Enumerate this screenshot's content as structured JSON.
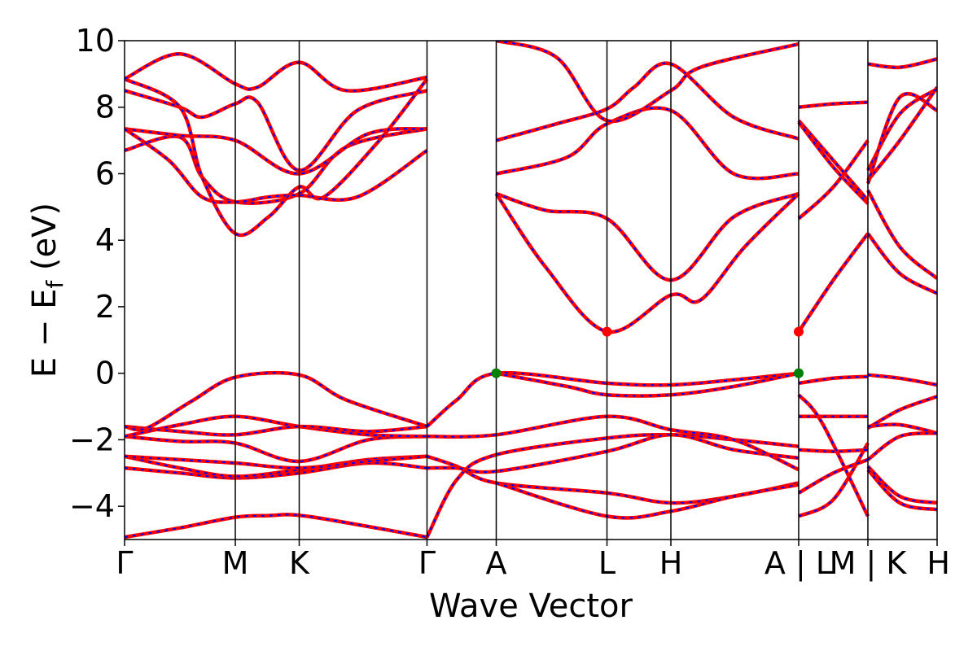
{
  "chart_data": {
    "type": "line",
    "title": "",
    "xlabel": "Wave Vector",
    "ylabel": {
      "main": "E − E",
      "sub": "f",
      "unit": "(eV)"
    },
    "ylim": [
      -5,
      10
    ],
    "yticks": [
      "−4",
      "−2",
      "0",
      "2",
      "4",
      "6",
      "8",
      "10"
    ],
    "ytick_values": [
      -4,
      -2,
      0,
      2,
      4,
      6,
      8,
      10
    ],
    "grid": false,
    "legend": "none",
    "kpoints": [
      {
        "label": "Γ",
        "x": 0
      },
      {
        "label": "M",
        "x": 1.0
      },
      {
        "label": "K",
        "x": 1.577
      },
      {
        "label": "Γ",
        "x": 2.731
      },
      {
        "label": "A",
        "x": 3.356
      },
      {
        "label": "L",
        "x": 4.356
      },
      {
        "label": "H",
        "x": 4.933
      },
      {
        "label": "A | L",
        "x": 6.087
      },
      {
        "label": "M | K",
        "x": 6.712
      },
      {
        "label": "H",
        "x": 7.337
      }
    ],
    "xrange": [
      0,
      7.337
    ],
    "colors": {
      "band_solid": "#ff0000",
      "band_dashed": "#0000ff",
      "vbm": "#008000",
      "cbm": "#ff0000"
    },
    "markers": [
      {
        "name": "VBM",
        "x": 3.356,
        "y": 0.0
      },
      {
        "name": "VBM",
        "x": 6.087,
        "y": 0.0
      },
      {
        "name": "CBM",
        "x": 4.356,
        "y": 1.25
      },
      {
        "name": "CBM",
        "x": 6.087,
        "y": 1.25
      }
    ],
    "series": [
      {
        "points": [
          [
            0,
            -4.93
          ],
          [
            0.5,
            -4.65
          ],
          [
            1.0,
            -4.33
          ],
          [
            1.3,
            -4.28
          ],
          [
            1.577,
            -4.27
          ],
          [
            2.1,
            -4.55
          ],
          [
            2.731,
            -4.93
          ]
        ]
      },
      {
        "points": [
          [
            0,
            -2.85
          ],
          [
            0.5,
            -3.0
          ],
          [
            1.0,
            -3.15
          ],
          [
            1.577,
            -3.0
          ],
          [
            2.2,
            -2.7
          ],
          [
            2.731,
            -2.85
          ]
        ]
      },
      {
        "points": [
          [
            0,
            -2.5
          ],
          [
            0.5,
            -2.85
          ],
          [
            1.0,
            -3.1
          ],
          [
            1.577,
            -2.9
          ],
          [
            2.2,
            -2.6
          ],
          [
            2.731,
            -2.5
          ]
        ]
      },
      {
        "points": [
          [
            0,
            -2.5
          ],
          [
            0.5,
            -2.6
          ],
          [
            1.0,
            -2.7
          ],
          [
            1.577,
            -2.85
          ],
          [
            2.2,
            -2.65
          ],
          [
            2.731,
            -2.5
          ]
        ]
      },
      {
        "points": [
          [
            0,
            -1.9
          ],
          [
            0.5,
            -2.05
          ],
          [
            1.0,
            -2.1
          ],
          [
            1.577,
            -2.65
          ],
          [
            2.2,
            -2.0
          ],
          [
            2.731,
            -1.9
          ]
        ]
      },
      {
        "points": [
          [
            0,
            -1.9
          ],
          [
            0.5,
            -1.55
          ],
          [
            1.0,
            -1.3
          ],
          [
            1.577,
            -1.6
          ],
          [
            2.2,
            -1.85
          ],
          [
            2.731,
            -1.9
          ]
        ]
      },
      {
        "points": [
          [
            0,
            -1.6
          ],
          [
            0.5,
            -1.75
          ],
          [
            1.0,
            -1.85
          ],
          [
            1.577,
            -1.6
          ],
          [
            2.2,
            -1.75
          ],
          [
            2.731,
            -1.6
          ]
        ]
      },
      {
        "points": [
          [
            0,
            -1.6
          ],
          [
            0.2,
            -1.65
          ],
          [
            0.6,
            -0.85
          ],
          [
            1.0,
            -0.12
          ],
          [
            1.577,
            -0.05
          ],
          [
            2.0,
            -0.8
          ],
          [
            2.731,
            -1.6
          ]
        ]
      },
      {
        "points": [
          [
            0,
            6.7
          ],
          [
            0.5,
            7.1
          ],
          [
            0.7,
            5.9
          ],
          [
            1.0,
            5.15
          ],
          [
            1.577,
            5.4
          ],
          [
            2.0,
            6.8
          ],
          [
            2.731,
            7.35
          ]
        ]
      },
      {
        "points": [
          [
            0,
            7.35
          ],
          [
            0.5,
            7.15
          ],
          [
            1.0,
            7.0
          ],
          [
            1.577,
            6.0
          ],
          [
            2.2,
            7.2
          ],
          [
            2.731,
            7.35
          ]
        ]
      },
      {
        "points": [
          [
            0,
            7.35
          ],
          [
            0.4,
            6.4
          ],
          [
            0.7,
            5.3
          ],
          [
            1.0,
            5.15
          ],
          [
            1.3,
            5.3
          ],
          [
            1.577,
            5.35
          ],
          [
            2.1,
            5.3
          ],
          [
            2.731,
            6.7
          ]
        ]
      },
      {
        "points": [
          [
            0,
            8.5
          ],
          [
            0.5,
            8.0
          ],
          [
            0.7,
            7.7
          ],
          [
            1.0,
            8.1
          ],
          [
            1.2,
            8.15
          ],
          [
            1.577,
            6.1
          ],
          [
            2.1,
            7.9
          ],
          [
            2.731,
            8.5
          ]
        ]
      },
      {
        "points": [
          [
            0,
            8.85
          ],
          [
            0.5,
            8.0
          ],
          [
            0.7,
            5.9
          ],
          [
            1.0,
            4.2
          ],
          [
            1.3,
            4.7
          ],
          [
            1.577,
            5.6
          ],
          [
            1.8,
            5.3
          ],
          [
            2.3,
            7.0
          ],
          [
            2.731,
            8.85
          ]
        ]
      },
      {
        "points": [
          [
            0,
            8.85
          ],
          [
            0.5,
            9.6
          ],
          [
            1.0,
            8.7
          ],
          [
            1.2,
            8.6
          ],
          [
            1.577,
            9.35
          ],
          [
            2.0,
            8.5
          ],
          [
            2.731,
            8.9
          ]
        ]
      },
      {
        "points": [
          [
            2.731,
            -4.93
          ],
          [
            3.0,
            -3.2
          ],
          [
            3.356,
            -2.45
          ],
          [
            4.356,
            -1.95
          ],
          [
            4.933,
            -1.85
          ],
          [
            5.5,
            -2.0
          ],
          [
            6.087,
            -2.2
          ]
        ]
      },
      {
        "points": [
          [
            2.731,
            -2.5
          ],
          [
            3.0,
            -2.8
          ],
          [
            3.356,
            -3.3
          ],
          [
            4.356,
            -3.6
          ],
          [
            4.933,
            -3.9
          ],
          [
            5.5,
            -3.7
          ],
          [
            6.087,
            -3.3
          ]
        ]
      },
      {
        "points": [
          [
            2.731,
            -2.85
          ],
          [
            3.0,
            -2.85
          ],
          [
            3.356,
            -2.95
          ],
          [
            4.356,
            -2.35
          ],
          [
            4.933,
            -1.85
          ],
          [
            5.5,
            -2.3
          ],
          [
            6.087,
            -2.55
          ]
        ]
      },
      {
        "points": [
          [
            2.731,
            -1.9
          ],
          [
            3.356,
            -1.85
          ],
          [
            4.356,
            -1.3
          ],
          [
            4.933,
            -1.7
          ],
          [
            5.5,
            -2.0
          ],
          [
            6.087,
            -2.9
          ]
        ]
      },
      {
        "points": [
          [
            2.731,
            -1.6
          ],
          [
            3.0,
            -0.8
          ],
          [
            3.356,
            0.0
          ],
          [
            4.356,
            -0.3
          ],
          [
            4.933,
            -0.35
          ],
          [
            5.5,
            -0.2
          ],
          [
            6.087,
            0.0
          ]
        ]
      },
      {
        "points": [
          [
            3.356,
            0.0
          ],
          [
            4.0,
            -0.4
          ],
          [
            4.356,
            -0.65
          ],
          [
            4.933,
            -0.65
          ],
          [
            5.5,
            -0.4
          ],
          [
            6.087,
            0.0
          ]
        ]
      },
      {
        "points": [
          [
            3.356,
            -3.3
          ],
          [
            4.356,
            -4.3
          ],
          [
            4.933,
            -4.15
          ],
          [
            5.5,
            -3.7
          ],
          [
            6.087,
            -3.35
          ]
        ]
      },
      {
        "points": [
          [
            3.356,
            5.4
          ],
          [
            3.8,
            4.9
          ],
          [
            4.356,
            4.65
          ],
          [
            4.933,
            2.8
          ],
          [
            5.5,
            4.7
          ],
          [
            6.087,
            5.4
          ]
        ]
      },
      {
        "points": [
          [
            3.356,
            5.4
          ],
          [
            3.8,
            3.2
          ],
          [
            4.356,
            1.25
          ],
          [
            4.933,
            2.35
          ],
          [
            5.2,
            2.2
          ],
          [
            5.6,
            3.8
          ],
          [
            6.087,
            5.4
          ]
        ]
      },
      {
        "points": [
          [
            3.356,
            6.0
          ],
          [
            4.0,
            6.5
          ],
          [
            4.356,
            7.5
          ],
          [
            4.933,
            7.9
          ],
          [
            5.5,
            6.0
          ],
          [
            6.087,
            6.0
          ]
        ]
      },
      {
        "points": [
          [
            3.356,
            7.0
          ],
          [
            3.9,
            7.5
          ],
          [
            4.356,
            7.95
          ],
          [
            4.6,
            8.6
          ],
          [
            4.933,
            9.3
          ],
          [
            5.5,
            7.7
          ],
          [
            6.087,
            7.05
          ]
        ]
      },
      {
        "points": [
          [
            3.356,
            10.0
          ],
          [
            3.9,
            9.5
          ],
          [
            4.356,
            7.6
          ],
          [
            4.933,
            8.5
          ],
          [
            5.2,
            9.2
          ],
          [
            6.087,
            9.9
          ]
        ]
      },
      {
        "points": [
          [
            6.087,
            -4.3
          ],
          [
            6.4,
            -3.8
          ],
          [
            6.712,
            -2.1
          ]
        ]
      },
      {
        "points": [
          [
            6.087,
            -3.6
          ],
          [
            6.4,
            -3.0
          ],
          [
            6.712,
            -2.6
          ]
        ]
      },
      {
        "points": [
          [
            6.087,
            -2.3
          ],
          [
            6.4,
            -2.35
          ],
          [
            6.712,
            -2.3
          ]
        ]
      },
      {
        "points": [
          [
            6.087,
            -1.3
          ],
          [
            6.712,
            -1.3
          ]
        ]
      },
      {
        "points": [
          [
            6.087,
            -0.65
          ],
          [
            6.3,
            -1.5
          ],
          [
            6.712,
            -4.3
          ]
        ]
      },
      {
        "points": [
          [
            6.087,
            -0.3
          ],
          [
            6.4,
            -0.15
          ],
          [
            6.712,
            -0.1
          ]
        ]
      },
      {
        "points": [
          [
            6.087,
            1.25
          ],
          [
            6.4,
            2.8
          ],
          [
            6.712,
            4.2
          ]
        ]
      },
      {
        "points": [
          [
            6.087,
            4.65
          ],
          [
            6.4,
            5.6
          ],
          [
            6.712,
            7.0
          ]
        ]
      },
      {
        "points": [
          [
            6.087,
            7.6
          ],
          [
            6.4,
            6.4
          ],
          [
            6.712,
            5.2
          ]
        ]
      },
      {
        "points": [
          [
            6.087,
            7.55
          ],
          [
            6.4,
            6.2
          ],
          [
            6.712,
            5.1
          ]
        ]
      },
      {
        "points": [
          [
            6.087,
            8.0
          ],
          [
            6.4,
            8.1
          ],
          [
            6.712,
            8.15
          ]
        ]
      },
      {
        "points": [
          [
            6.712,
            -0.05
          ],
          [
            7.0,
            -0.15
          ],
          [
            7.337,
            -0.35
          ]
        ]
      },
      {
        "points": [
          [
            6.712,
            -1.65
          ],
          [
            7.0,
            -1.1
          ],
          [
            7.337,
            -0.7
          ]
        ]
      },
      {
        "points": [
          [
            6.712,
            -1.6
          ],
          [
            7.0,
            -1.55
          ],
          [
            7.337,
            -1.8
          ]
        ]
      },
      {
        "points": [
          [
            6.712,
            -2.6
          ],
          [
            7.0,
            -1.9
          ],
          [
            7.337,
            -1.8
          ]
        ]
      },
      {
        "points": [
          [
            6.712,
            -2.8
          ],
          [
            7.0,
            -3.7
          ],
          [
            7.337,
            -3.9
          ]
        ]
      },
      {
        "points": [
          [
            6.712,
            -2.9
          ],
          [
            7.0,
            -3.9
          ],
          [
            7.337,
            -4.1
          ]
        ]
      },
      {
        "points": [
          [
            6.712,
            4.2
          ],
          [
            7.0,
            3.0
          ],
          [
            7.337,
            2.4
          ]
        ]
      },
      {
        "points": [
          [
            6.712,
            5.5
          ],
          [
            7.0,
            3.8
          ],
          [
            7.337,
            2.85
          ]
        ]
      },
      {
        "points": [
          [
            6.712,
            5.8
          ],
          [
            7.0,
            7.0
          ],
          [
            7.337,
            8.6
          ]
        ]
      },
      {
        "points": [
          [
            6.712,
            6.1
          ],
          [
            7.0,
            7.8
          ],
          [
            7.337,
            8.55
          ]
        ]
      },
      {
        "points": [
          [
            6.712,
            9.3
          ],
          [
            7.0,
            9.2
          ],
          [
            7.337,
            9.45
          ]
        ]
      },
      {
        "points": [
          [
            6.712,
            5.7
          ],
          [
            7.0,
            8.3
          ],
          [
            7.337,
            7.9
          ]
        ]
      }
    ]
  }
}
